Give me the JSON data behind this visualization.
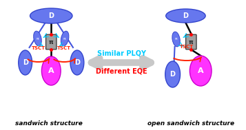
{
  "bg_color": "#ffffff",
  "donor_color_face": "#6677ee",
  "donor_color_edge": "#3344cc",
  "acceptor_face": "#ff33ff",
  "acceptor_edge": "#cc00cc",
  "connector_color": "#4455dd",
  "box_face": "#999999",
  "box_edge": "#444444",
  "tsct_color": "#ff2200",
  "cyan_arrow": "#00ccff",
  "similar_color": "#00ccff",
  "different_color": "#ff0000",
  "arrow_gray": "#bbbbbb",
  "title_left": "sandwich structure",
  "title_right": "open sandwich structure",
  "label_D": "D",
  "label_A": "A",
  "label_TSCT": "TSCT",
  "label_pi": "π",
  "text_similar": "Similar PLQY",
  "text_different": "Different EQE",
  "fig_w": 3.57,
  "fig_h": 1.89,
  "dpi": 100
}
